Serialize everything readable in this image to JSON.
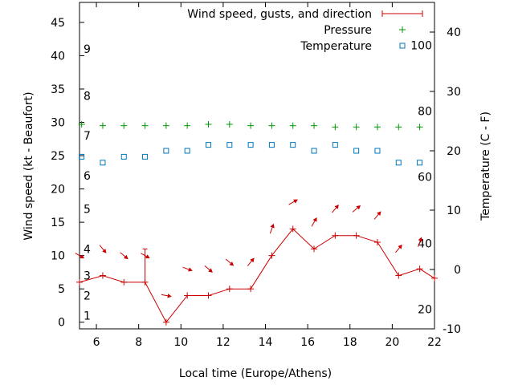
{
  "chart_data": {
    "type": "line",
    "xlabel": "Local time (Europe/Athens)",
    "ylabel_left": "Wind speed (kt - Beaufort)",
    "ylabel_right": "Temperature (C - F)",
    "xlim": [
      5.2,
      22
    ],
    "ylim_left": [
      -1,
      48
    ],
    "ylim_right": [
      -10,
      45
    ],
    "x_ticks": [
      "6",
      "8",
      "10",
      "12",
      "14",
      "16",
      "18",
      "20",
      "22"
    ],
    "y_left_ticks": [
      "0",
      "5",
      "10",
      "15",
      "20",
      "25",
      "30",
      "35",
      "40",
      "45"
    ],
    "y_right_ticks": [
      "-10",
      "0",
      "10",
      "20",
      "30",
      "40"
    ],
    "beaufort_labels": [
      {
        "label": "1",
        "y": 1
      },
      {
        "label": "2",
        "y": 4
      },
      {
        "label": "3",
        "y": 7
      },
      {
        "label": "4",
        "y": 11
      },
      {
        "label": "5",
        "y": 17
      },
      {
        "label": "6",
        "y": 22
      },
      {
        "label": "7",
        "y": 28
      },
      {
        "label": "8",
        "y": 34
      },
      {
        "label": "9",
        "y": 41
      }
    ],
    "fahrenheit_labels": [
      {
        "label": "20",
        "c": -6.7
      },
      {
        "label": "40",
        "c": 4.4
      },
      {
        "label": "60",
        "c": 15.6
      },
      {
        "label": "80",
        "c": 26.7
      },
      {
        "label": "100",
        "c": 37.8
      }
    ],
    "legend": {
      "wind": "Wind speed, gusts, and direction",
      "pressure": "Pressure",
      "temperature": "Temperature"
    },
    "colors": {
      "wind": "#cc0000",
      "pressure": "#009900",
      "temperature": "#0077bb"
    },
    "series": {
      "wind": {
        "x": [
          5.2,
          6.3,
          7.3,
          8.3,
          9.3,
          10.3,
          11.3,
          12.3,
          13.3,
          14.3,
          15.3,
          16.3,
          17.3,
          18.3,
          19.3,
          20.3,
          21.3,
          22
        ],
        "y": [
          6,
          7,
          6,
          6,
          0,
          4,
          4,
          5,
          5,
          10,
          14,
          11,
          13,
          13,
          12,
          7,
          8,
          6.6
        ]
      },
      "gusts": [
        {
          "x": 8.3,
          "from": 6,
          "to": 11
        }
      ],
      "direction_deg": [
        300,
        320,
        310,
        300,
        280,
        290,
        310,
        310,
        220,
        200,
        240,
        210,
        220,
        230,
        220,
        220,
        200
      ],
      "pressure": {
        "x": [
          5.3,
          6.3,
          7.3,
          8.3,
          9.3,
          10.3,
          11.3,
          12.3,
          13.3,
          14.3,
          15.3,
          16.3,
          17.3,
          18.3,
          19.3,
          20.3,
          21.3
        ],
        "y": [
          29.7,
          29.5,
          29.5,
          29.5,
          29.5,
          29.5,
          29.7,
          29.7,
          29.5,
          29.5,
          29.5,
          29.5,
          29.3,
          29.3,
          29.3,
          29.3,
          29.3
        ]
      },
      "temperature": {
        "x": [
          5.3,
          6.3,
          7.3,
          8.3,
          9.3,
          10.3,
          11.3,
          12.3,
          13.3,
          14.3,
          15.3,
          16.3,
          17.3,
          18.3,
          19.3,
          20.3,
          21.3
        ],
        "y": [
          19,
          18,
          19,
          19,
          20,
          20,
          21,
          21,
          21,
          21,
          21,
          20,
          21,
          20,
          20,
          18,
          18
        ]
      }
    }
  }
}
